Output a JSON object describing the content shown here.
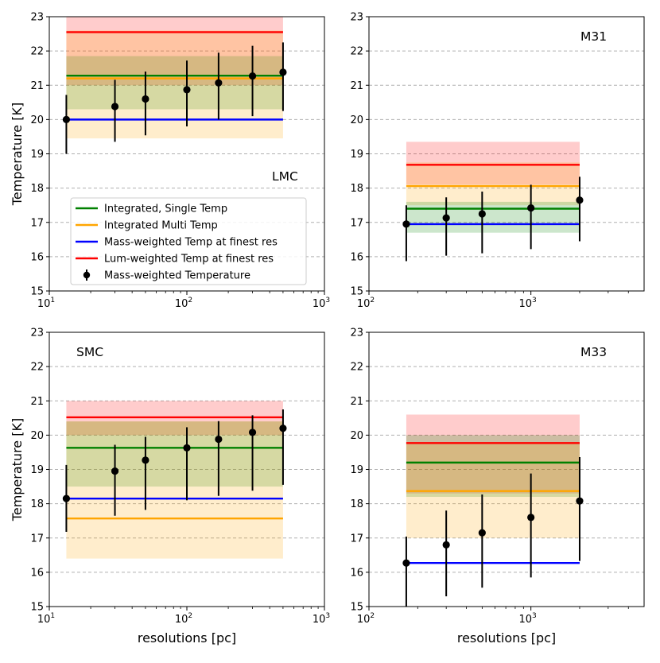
{
  "chart_data": [
    {
      "type": "errorbar_with_bands",
      "name": "LMC",
      "label": "LMC",
      "xscale": "log",
      "xlim": [
        10,
        1000
      ],
      "ylim": [
        15,
        23
      ],
      "xtick_labels": [
        {
          "base": "10",
          "exp": "1",
          "value": 10
        },
        {
          "base": "10",
          "exp": "2",
          "value": 100
        },
        {
          "base": "10",
          "exp": "3",
          "value": 1000
        }
      ],
      "yticks": [
        15,
        16,
        17,
        18,
        19,
        20,
        21,
        22,
        23
      ],
      "ylabel": "Temperature [K]",
      "xlabel": "",
      "grid": "y-dashed",
      "band_x": [
        13.3,
        500
      ],
      "bands": [
        {
          "name": "Lum-weighted Temp at finest res",
          "color": "#ff0000",
          "low": 21.0,
          "high": 23.0
        },
        {
          "name": "Integrated, Single Temp",
          "color": "#008000",
          "low": 20.3,
          "high": 21.85
        },
        {
          "name": "Integrated Multi Temp",
          "color": "#ffa500",
          "low": 19.45,
          "high": 22.6
        }
      ],
      "lines": [
        {
          "name": "Integrated Multi Temp",
          "color": "#ffa500",
          "value": 21.2
        },
        {
          "name": "Integrated, Single Temp",
          "color": "#008000",
          "value": 21.28
        },
        {
          "name": "Mass-weighted Temp at finest res",
          "color": "#0000ff",
          "value": 20.0
        },
        {
          "name": "Lum-weighted Temp at finest res",
          "color": "#ff0000",
          "value": 22.55
        }
      ],
      "points": [
        {
          "x": 13.3,
          "y": 20.0,
          "yerr_low": 1.0,
          "yerr_high": 0.72
        },
        {
          "x": 30,
          "y": 20.38,
          "yerr_low": 1.03,
          "yerr_high": 0.78
        },
        {
          "x": 50,
          "y": 20.6,
          "yerr_low": 1.06,
          "yerr_high": 0.8
        },
        {
          "x": 100,
          "y": 20.87,
          "yerr_low": 1.07,
          "yerr_high": 0.85
        },
        {
          "x": 170,
          "y": 21.07,
          "yerr_low": 1.07,
          "yerr_high": 0.88
        },
        {
          "x": 300,
          "y": 21.27,
          "yerr_low": 1.17,
          "yerr_high": 0.88
        },
        {
          "x": 500,
          "y": 21.38,
          "yerr_low": 1.13,
          "yerr_high": 0.87
        }
      ],
      "legend": {
        "placement": "lower-left",
        "entries": [
          {
            "label": "Integrated, Single Temp",
            "color": "#008000",
            "kind": "line"
          },
          {
            "label": "Integrated Multi Temp",
            "color": "#ffa500",
            "kind": "line"
          },
          {
            "label": "Mass-weighted Temp at finest res",
            "color": "#0000ff",
            "kind": "line"
          },
          {
            "label": "Lum-weighted Temp at finest res",
            "color": "#ff0000",
            "kind": "line"
          },
          {
            "label": "Mass-weighted Temperature",
            "color": "#000000",
            "kind": "errorbar"
          }
        ]
      }
    },
    {
      "type": "errorbar_with_bands",
      "name": "M31",
      "label": "M31",
      "xscale": "log",
      "xlim": [
        100,
        5000
      ],
      "ylim": [
        15,
        23
      ],
      "xtick_labels": [
        {
          "base": "10",
          "exp": "2",
          "value": 100
        },
        {
          "base": "10",
          "exp": "3",
          "value": 1000
        }
      ],
      "yticks": [
        15,
        16,
        17,
        18,
        19,
        20,
        21,
        22,
        23
      ],
      "ylabel": "",
      "xlabel": "",
      "grid": "y-dashed",
      "band_x": [
        170,
        2000
      ],
      "bands": [
        {
          "name": "Lum-weighted Temp at finest res",
          "color": "#ff0000",
          "low": 18.1,
          "high": 19.35
        },
        {
          "name": "Integrated Multi Temp",
          "color": "#ffa500",
          "low": 17.5,
          "high": 18.75
        },
        {
          "name": "Integrated, Single Temp",
          "color": "#008000",
          "low": 16.7,
          "high": 17.6
        }
      ],
      "lines": [
        {
          "name": "Lum-weighted Temp at finest res",
          "color": "#ff0000",
          "value": 18.68
        },
        {
          "name": "Integrated Multi Temp",
          "color": "#ffa500",
          "value": 18.06
        },
        {
          "name": "Integrated, Single Temp",
          "color": "#008000",
          "value": 17.4
        },
        {
          "name": "Mass-weighted Temp at finest res",
          "color": "#0000ff",
          "value": 16.95
        }
      ],
      "points": [
        {
          "x": 170,
          "y": 16.95,
          "yerr_low": 1.08,
          "yerr_high": 0.55
        },
        {
          "x": 300,
          "y": 17.13,
          "yerr_low": 1.1,
          "yerr_high": 0.6
        },
        {
          "x": 500,
          "y": 17.25,
          "yerr_low": 1.15,
          "yerr_high": 0.65
        },
        {
          "x": 1000,
          "y": 17.42,
          "yerr_low": 1.2,
          "yerr_high": 0.68
        },
        {
          "x": 2000,
          "y": 17.65,
          "yerr_low": 1.2,
          "yerr_high": 0.68
        }
      ]
    },
    {
      "type": "errorbar_with_bands",
      "name": "SMC",
      "label": "SMC",
      "xscale": "log",
      "xlim": [
        10,
        1000
      ],
      "ylim": [
        15,
        23
      ],
      "xtick_labels": [
        {
          "base": "10",
          "exp": "1",
          "value": 10
        },
        {
          "base": "10",
          "exp": "2",
          "value": 100
        },
        {
          "base": "10",
          "exp": "3",
          "value": 1000
        }
      ],
      "yticks": [
        15,
        16,
        17,
        18,
        19,
        20,
        21,
        22,
        23
      ],
      "ylabel": "Temperature [K]",
      "xlabel": "resolutions [pc]",
      "grid": "y-dashed",
      "band_x": [
        13.3,
        500
      ],
      "bands": [
        {
          "name": "Lum-weighted Temp at finest res",
          "color": "#ff0000",
          "low": 20.0,
          "high": 21.0
        },
        {
          "name": "Integrated, Single Temp",
          "color": "#008000",
          "low": 18.5,
          "high": 20.4
        },
        {
          "name": "Integrated Multi Temp",
          "color": "#ffa500",
          "low": 16.4,
          "high": 20.4
        }
      ],
      "lines": [
        {
          "name": "Lum-weighted Temp at finest res",
          "color": "#ff0000",
          "value": 20.52
        },
        {
          "name": "Integrated, Single Temp",
          "color": "#008000",
          "value": 19.63
        },
        {
          "name": "Mass-weighted Temp at finest res",
          "color": "#0000ff",
          "value": 18.15
        },
        {
          "name": "Integrated Multi Temp",
          "color": "#ffa500",
          "value": 17.57
        }
      ],
      "points": [
        {
          "x": 13.3,
          "y": 18.15,
          "yerr_low": 0.97,
          "yerr_high": 0.98
        },
        {
          "x": 30,
          "y": 18.95,
          "yerr_low": 1.3,
          "yerr_high": 0.77
        },
        {
          "x": 50,
          "y": 19.27,
          "yerr_low": 1.45,
          "yerr_high": 0.68
        },
        {
          "x": 100,
          "y": 19.63,
          "yerr_low": 1.53,
          "yerr_high": 0.6
        },
        {
          "x": 170,
          "y": 19.88,
          "yerr_low": 1.65,
          "yerr_high": 0.53
        },
        {
          "x": 300,
          "y": 20.08,
          "yerr_low": 1.7,
          "yerr_high": 0.5
        },
        {
          "x": 500,
          "y": 20.2,
          "yerr_low": 1.65,
          "yerr_high": 0.55
        }
      ]
    },
    {
      "type": "errorbar_with_bands",
      "name": "M33",
      "label": "M33",
      "xscale": "log",
      "xlim": [
        100,
        5000
      ],
      "ylim": [
        15,
        23
      ],
      "xtick_labels": [
        {
          "base": "10",
          "exp": "2",
          "value": 100
        },
        {
          "base": "10",
          "exp": "3",
          "value": 1000
        }
      ],
      "yticks": [
        15,
        16,
        17,
        18,
        19,
        20,
        21,
        22,
        23
      ],
      "ylabel": "",
      "xlabel": "resolutions [pc]",
      "grid": "y-dashed",
      "band_x": [
        170,
        2000
      ],
      "bands": [
        {
          "name": "Lum-weighted Temp at finest res",
          "color": "#ff0000",
          "low": 18.3,
          "high": 20.6
        },
        {
          "name": "Integrated, Single Temp",
          "color": "#008000",
          "low": 18.2,
          "high": 20.0
        },
        {
          "name": "Integrated Multi Temp",
          "color": "#ffa500",
          "low": 17.0,
          "high": 19.8
        }
      ],
      "lines": [
        {
          "name": "Lum-weighted Temp at finest res",
          "color": "#ff0000",
          "value": 19.77
        },
        {
          "name": "Integrated, Single Temp",
          "color": "#008000",
          "value": 19.2
        },
        {
          "name": "Integrated Multi Temp",
          "color": "#ffa500",
          "value": 18.37
        },
        {
          "name": "Mass-weighted Temp at finest res",
          "color": "#0000ff",
          "value": 16.27
        }
      ],
      "points": [
        {
          "x": 170,
          "y": 16.27,
          "yerr_low": 1.3,
          "yerr_high": 0.77
        },
        {
          "x": 300,
          "y": 16.8,
          "yerr_low": 1.5,
          "yerr_high": 1.0
        },
        {
          "x": 500,
          "y": 17.15,
          "yerr_low": 1.6,
          "yerr_high": 1.12
        },
        {
          "x": 1000,
          "y": 17.6,
          "yerr_low": 1.75,
          "yerr_high": 1.28
        },
        {
          "x": 2000,
          "y": 18.08,
          "yerr_low": 1.75,
          "yerr_high": 1.28
        }
      ]
    }
  ]
}
